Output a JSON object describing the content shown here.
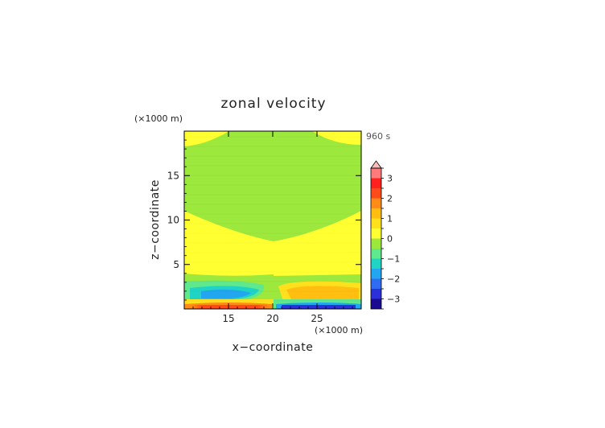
{
  "chart_data": {
    "type": "heatmap",
    "title": "zonal velocity",
    "time_label": "960 s",
    "xlabel": "x−coordinate",
    "ylabel": "z−coordinate",
    "x_unit": "(×1000 m)",
    "z_unit": "(×1000 m)",
    "xlim": [
      10,
      30
    ],
    "zlim": [
      0,
      20
    ],
    "x_ticks": [
      15,
      20,
      25
    ],
    "z_ticks": [
      5,
      10,
      15
    ],
    "colorbar": {
      "levels": [
        -3.5,
        -3,
        -2.5,
        -2,
        -1.5,
        -1,
        -0.5,
        0,
        0.5,
        1,
        1.5,
        2,
        2.5,
        3,
        3.5
      ],
      "tick_labels": [
        "−3",
        "−2",
        "−1",
        "0",
        "1",
        "2",
        "3"
      ],
      "tick_values": [
        -3,
        -2,
        -1,
        0,
        1,
        2,
        3
      ],
      "colors": [
        "#1a0a90",
        "#2c30d8",
        "#2f6cf2",
        "#22a6f0",
        "#20d4c4",
        "#5fe88c",
        "#9ce83c",
        "#ffff32",
        "#ffe01c",
        "#ffbe10",
        "#ff8c16",
        "#ff4a1c",
        "#ff2020",
        "#ff7a7a"
      ],
      "over_color": "#ffbcbc",
      "extend": "max"
    },
    "grid": true
  }
}
